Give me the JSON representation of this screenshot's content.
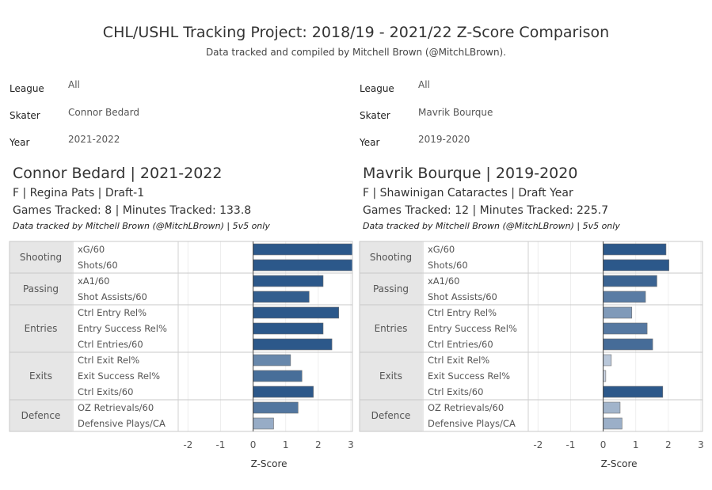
{
  "header": {
    "title": "CHL/USHL Tracking Project: 2018/19 - 2021/22 Z-Score Comparison",
    "subtitle": "Data tracked and compiled by Mitchell Brown (@MitchLBrown)."
  },
  "filters": {
    "labels": {
      "league": "League",
      "skater": "Skater",
      "year": "Year"
    },
    "left": {
      "league": "All",
      "skater": "Connor Bedard",
      "year": "2021-2022"
    },
    "right": {
      "league": "All",
      "skater": "Mavrik Bourque",
      "year": "2019-2020"
    }
  },
  "players": [
    {
      "name_line": "Connor Bedard | 2021-2022",
      "info_line": "F | Regina Pats | Draft-1",
      "games_line": "Games Tracked: 8 | Minutes Tracked: 133.8",
      "note": "Data tracked by Mitchell Brown (@MitchLBrown) | 5v5 only"
    },
    {
      "name_line": "Mavrik Bourque | 2019-2020",
      "info_line": "F | Shawinigan Cataractes | Draft Year",
      "games_line": "Games Tracked: 12 | Minutes Tracked: 225.7",
      "note": "Data tracked by Mitchell Brown (@MitchLBrown) | 5v5 only"
    }
  ],
  "chart_data": [
    {
      "type": "bar",
      "orientation": "horizontal",
      "xlabel": "Z-Score",
      "xlim": [
        -2.3,
        3.05
      ],
      "xticks": [
        -2,
        -1,
        0,
        1,
        2,
        3
      ],
      "groups": [
        {
          "name": "Shooting",
          "metrics": [
            "xG/60",
            "Shots/60"
          ]
        },
        {
          "name": "Passing",
          "metrics": [
            "xA1/60",
            "Shot Assists/60"
          ]
        },
        {
          "name": "Entries",
          "metrics": [
            "Ctrl Entry Rel%",
            "Entry Success Rel%",
            "Ctrl Entries/60"
          ]
        },
        {
          "name": "Exits",
          "metrics": [
            "Ctrl Exit Rel%",
            "Exit Success Rel%",
            "Ctrl Exits/60"
          ]
        },
        {
          "name": "Defence",
          "metrics": [
            "OZ Retrievals/60",
            "Defensive Plays/CA"
          ]
        }
      ],
      "values": [
        3.05,
        3.05,
        2.15,
        1.72,
        2.63,
        2.15,
        2.42,
        1.15,
        1.5,
        1.85,
        1.38,
        0.63
      ]
    },
    {
      "type": "bar",
      "orientation": "horizontal",
      "xlabel": "Z-Score",
      "xlim": [
        -2.3,
        3.05
      ],
      "xticks": [
        -2,
        -1,
        0,
        1,
        2,
        3
      ],
      "groups": [
        {
          "name": "Shooting",
          "metrics": [
            "xG/60",
            "Shots/60"
          ]
        },
        {
          "name": "Passing",
          "metrics": [
            "xA1/60",
            "Shot Assists/60"
          ]
        },
        {
          "name": "Entries",
          "metrics": [
            "Ctrl Entry Rel%",
            "Entry Success Rel%",
            "Ctrl Entries/60"
          ]
        },
        {
          "name": "Exits",
          "metrics": [
            "Ctrl Exit Rel%",
            "Exit Success Rel%",
            "Ctrl Exits/60"
          ]
        },
        {
          "name": "Defence",
          "metrics": [
            "OZ Retrievals/60",
            "Defensive Plays/CA"
          ]
        }
      ],
      "values": [
        1.93,
        2.02,
        1.65,
        1.3,
        0.88,
        1.35,
        1.52,
        0.25,
        0.08,
        1.83,
        0.52,
        0.58
      ]
    }
  ]
}
